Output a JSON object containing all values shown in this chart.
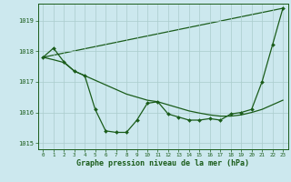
{
  "background_color": "#cce8ee",
  "grid_color": "#aacccc",
  "line_color": "#1a5c1a",
  "marker_color": "#1a5c1a",
  "xlabel": "Graphe pression niveau de la mer (hPa)",
  "xlabel_fontsize": 6.0,
  "xlabel_color": "#1a5c1a",
  "tick_color": "#1a5c1a",
  "ylim": [
    1014.8,
    1019.55
  ],
  "xlim": [
    -0.5,
    23.5
  ],
  "yticks": [
    1015,
    1016,
    1017,
    1018,
    1019
  ],
  "xticks": [
    0,
    1,
    2,
    3,
    4,
    5,
    6,
    7,
    8,
    9,
    10,
    11,
    12,
    13,
    14,
    15,
    16,
    17,
    18,
    19,
    20,
    21,
    22,
    23
  ],
  "series1_x": [
    0,
    1,
    2,
    3,
    4,
    5,
    6,
    7,
    8,
    9,
    10,
    11,
    12,
    13,
    14,
    15,
    16,
    17,
    18,
    19,
    20,
    21,
    22,
    23
  ],
  "series1_y": [
    1017.8,
    1018.1,
    1017.65,
    1017.35,
    1017.2,
    1016.1,
    1015.4,
    1015.35,
    1015.35,
    1015.75,
    1016.3,
    1016.35,
    1015.95,
    1015.85,
    1015.75,
    1015.75,
    1015.8,
    1015.75,
    1015.95,
    1016.0,
    1016.1,
    1017.0,
    1018.2,
    1019.4
  ],
  "series2_x": [
    0,
    1,
    2,
    3,
    4,
    5,
    6,
    7,
    8,
    9,
    10,
    11,
    12,
    13,
    14,
    15,
    16,
    17,
    18,
    19,
    20,
    21,
    22,
    23
  ],
  "series2_y": [
    1017.8,
    1017.72,
    1017.63,
    1017.35,
    1017.2,
    1017.05,
    1016.9,
    1016.75,
    1016.6,
    1016.5,
    1016.4,
    1016.35,
    1016.25,
    1016.15,
    1016.05,
    1015.98,
    1015.92,
    1015.88,
    1015.88,
    1015.92,
    1016.0,
    1016.1,
    1016.25,
    1016.4
  ],
  "series3_x": [
    0,
    23
  ],
  "series3_y": [
    1017.8,
    1019.4
  ]
}
